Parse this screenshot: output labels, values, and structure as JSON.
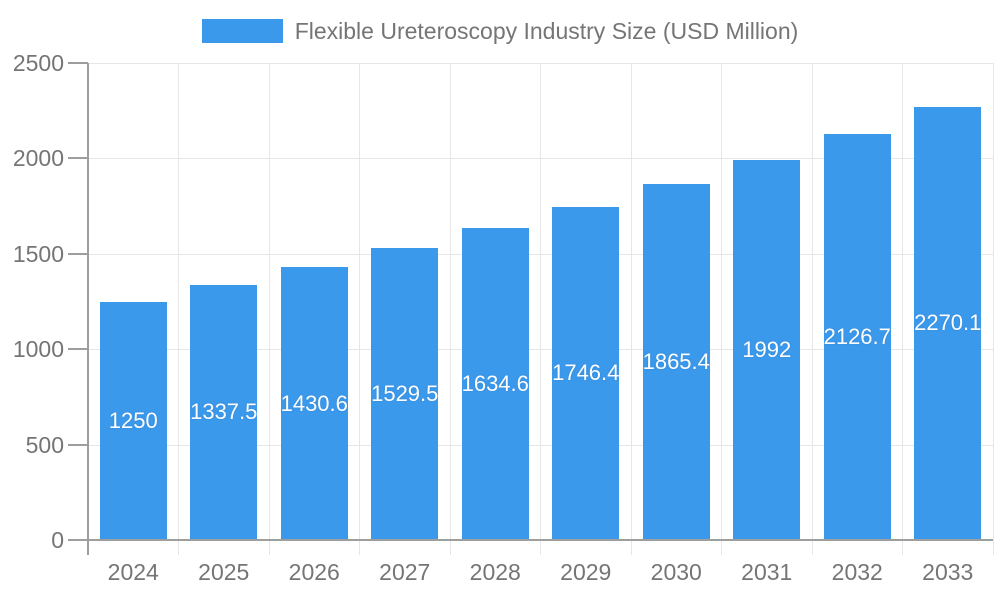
{
  "legend": {
    "label": "Flexible Ureteroscopy Industry Size (USD Million)"
  },
  "chart_data": {
    "type": "bar",
    "title": "Flexible Ureteroscopy Industry Size (USD Million)",
    "categories": [
      "2024",
      "2025",
      "2026",
      "2027",
      "2028",
      "2029",
      "2030",
      "2031",
      "2032",
      "2033"
    ],
    "values": [
      1250,
      1337.5,
      1430.6,
      1529.5,
      1634.6,
      1746.4,
      1865.4,
      1992,
      2126.7,
      2270.1
    ],
    "value_labels": [
      "1250",
      "1337.5",
      "1430.6",
      "1529.5",
      "1634.6",
      "1746.4",
      "1865.4",
      "1992",
      "2126.7",
      "2270.1"
    ],
    "xlabel": "",
    "ylabel": "",
    "ylim": [
      0,
      2500
    ],
    "yticks": [
      0,
      500,
      1000,
      1500,
      2000,
      2500
    ],
    "ytick_labels": [
      "0",
      "500",
      "1000",
      "1500",
      "2000",
      "2500"
    ],
    "grid": true,
    "legend_position": "top-center",
    "colors": {
      "bar": "#3B99EC",
      "bar_label": "#FFFFFF",
      "axis_text": "#757575",
      "gridline": "#E6E6E6",
      "axis_line": "#9E9E9E",
      "background": "#FFFFFF"
    }
  }
}
